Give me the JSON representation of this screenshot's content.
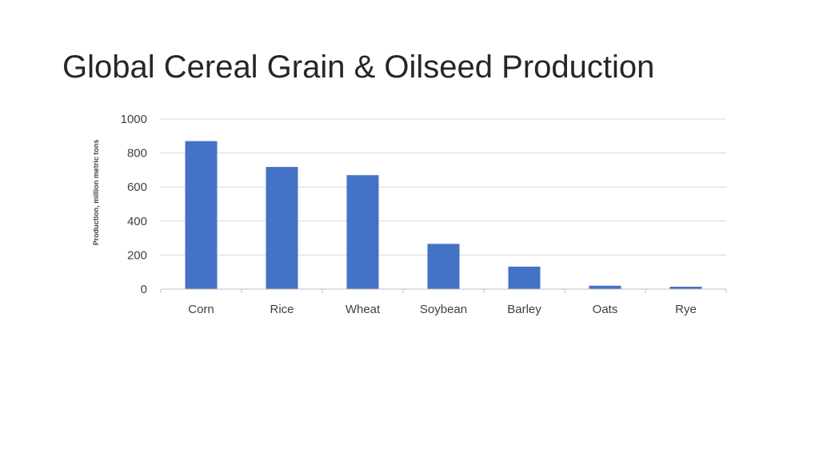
{
  "slide": {
    "title": "Global Cereal Grain & Oilseed Production"
  },
  "chart_data": {
    "type": "bar",
    "title": "",
    "xlabel": "",
    "ylabel": "Production, million metric tons",
    "categories": [
      "Corn",
      "Rice",
      "Wheat",
      "Soybean",
      "Barley",
      "Oats",
      "Rye"
    ],
    "values": [
      870,
      718,
      670,
      266,
      132,
      20,
      14
    ],
    "ylim": [
      0,
      1000
    ],
    "yticks": [
      0,
      200,
      400,
      600,
      800,
      1000
    ],
    "grid": true,
    "legend": "none",
    "bar_color": "#4472C4",
    "grid_color": "#D9D9D9",
    "axis_color": "#BFBFBF"
  }
}
